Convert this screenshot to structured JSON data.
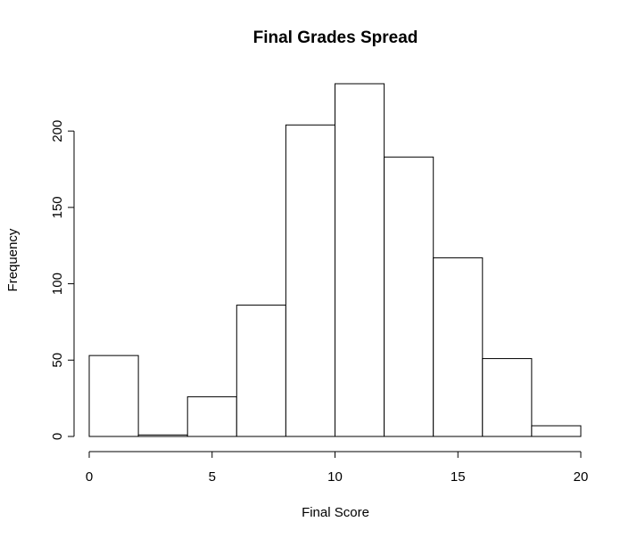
{
  "chart_data": {
    "type": "bar",
    "title": "Final Grades Spread",
    "xlabel": "Final Score",
    "ylabel": "Frequency",
    "bins": [
      {
        "from": 0,
        "to": 2,
        "value": 53
      },
      {
        "from": 2,
        "to": 4,
        "value": 1
      },
      {
        "from": 4,
        "to": 6,
        "value": 26
      },
      {
        "from": 6,
        "to": 8,
        "value": 86
      },
      {
        "from": 8,
        "to": 10,
        "value": 204
      },
      {
        "from": 10,
        "to": 12,
        "value": 231
      },
      {
        "from": 12,
        "to": 14,
        "value": 183
      },
      {
        "from": 14,
        "to": 16,
        "value": 117
      },
      {
        "from": 16,
        "to": 18,
        "value": 51
      },
      {
        "from": 18,
        "to": 20,
        "value": 7
      }
    ],
    "x_ticks": [
      0,
      5,
      10,
      15,
      20
    ],
    "y_ticks": [
      0,
      50,
      100,
      150,
      200
    ],
    "xlim": [
      0,
      20
    ],
    "ylim": [
      0,
      231
    ],
    "grid": false,
    "bar_fill": "#ffffff",
    "bar_stroke": "#000000"
  }
}
